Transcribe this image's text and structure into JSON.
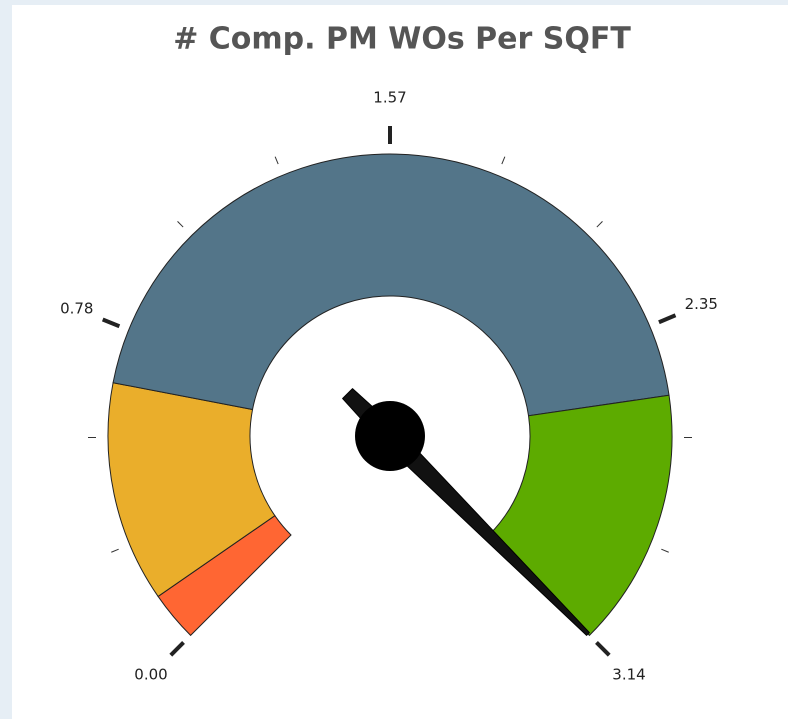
{
  "chart_data": {
    "type": "gauge",
    "title": "# Comp. PM WOs Per SQFT",
    "min": 0,
    "max": 3.14,
    "value": 3.14,
    "ticks": [
      {
        "value": 0,
        "label": "0.00"
      },
      0.78,
      1.57,
      2.35,
      3.14
    ],
    "minor_ticks": [
      0.26,
      0.52,
      1.05,
      1.31,
      1.83,
      2.09,
      2.62,
      2.88
    ],
    "bands": [
      {
        "from": 0,
        "to": 0.12,
        "color": "#ff6633"
      },
      {
        "from": 0.12,
        "to": 0.65,
        "color": "#eaae2b"
      },
      {
        "from": 0.65,
        "to": 2.52,
        "color": "#537589"
      },
      {
        "from": 2.52,
        "to": 3.14,
        "color": "#5dab00"
      }
    ]
  }
}
